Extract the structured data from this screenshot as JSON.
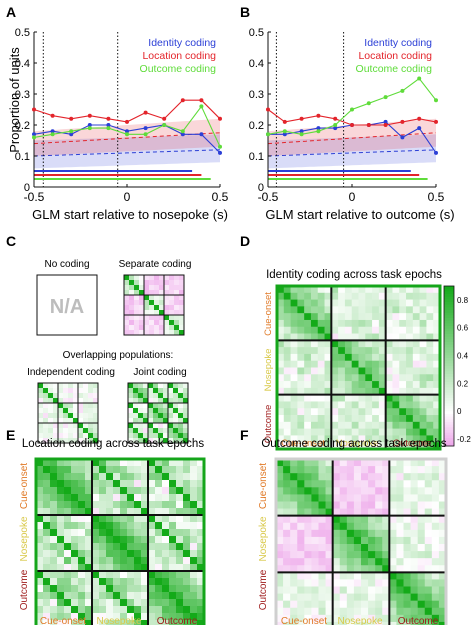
{
  "colors": {
    "identity": "#2b3fd6",
    "location": "#e3242b",
    "outcome": "#5fdc3a",
    "green_dark": "#14a51a",
    "pink": "#f3c6f0",
    "gray": "#cfcfcf"
  },
  "panels": {
    "A": {
      "letter": "A"
    },
    "B": {
      "letter": "B"
    },
    "C": {
      "letter": "C",
      "no_coding": "No coding",
      "na": "N/A",
      "separate": "Separate coding",
      "overlap_title": "Overlapping populations:",
      "independent": "Independent coding",
      "joint": "Joint coding"
    },
    "D": {
      "letter": "D",
      "title": "Identity coding across task epochs"
    },
    "E": {
      "letter": "E",
      "title": "Location coding across task epochs"
    },
    "F": {
      "letter": "F",
      "title": "Outcome coding across task epochs"
    }
  },
  "epochs": {
    "cue": "Cue-onset",
    "nose": "Nosepoke",
    "outcome": "Outcome"
  },
  "colorbar_ticks": [
    "0.8",
    "0.6",
    "0.4",
    "0.2",
    "0",
    "-0.2"
  ],
  "chart_data": [
    {
      "panel": "A",
      "type": "line",
      "xlabel": "GLM start relative to nosepoke (s)",
      "ylabel": "Proportion of units",
      "xlim": [
        -0.5,
        0.5
      ],
      "ylim": [
        0,
        0.5
      ],
      "xticks": [
        "-0.5",
        "0",
        "0.5"
      ],
      "yticks": [
        "0",
        "0.1",
        "0.2",
        "0.3",
        "0.4",
        "0.5"
      ],
      "vlines": [
        -0.45,
        -0.05
      ],
      "legend": [
        "Identity coding",
        "Location coding",
        "Outcome coding"
      ],
      "x": [
        -0.5,
        -0.4,
        -0.3,
        -0.2,
        -0.1,
        0.0,
        0.1,
        0.2,
        0.3,
        0.4,
        0.5
      ],
      "series": [
        {
          "name": "Identity coding",
          "values": [
            0.17,
            0.18,
            0.17,
            0.2,
            0.2,
            0.18,
            0.19,
            0.2,
            0.17,
            0.17,
            0.11
          ]
        },
        {
          "name": "Location coding",
          "values": [
            0.25,
            0.23,
            0.22,
            0.23,
            0.22,
            0.21,
            0.24,
            0.22,
            0.28,
            0.28,
            0.22
          ]
        },
        {
          "name": "Outcome coding",
          "values": [
            0.16,
            0.17,
            0.18,
            0.19,
            0.19,
            0.17,
            0.17,
            0.2,
            0.18,
            0.26,
            0.13
          ]
        }
      ]
    },
    {
      "panel": "B",
      "type": "line",
      "xlabel": "GLM start relative to outcome (s)",
      "xlim": [
        -0.5,
        0.5
      ],
      "ylim": [
        0,
        0.5
      ],
      "xticks": [
        "-0.5",
        "0",
        "0.5"
      ],
      "yticks": [
        "0",
        "0.1",
        "0.2",
        "0.3",
        "0.4",
        "0.5"
      ],
      "vlines": [
        -0.45,
        -0.05
      ],
      "legend": [
        "Identity coding",
        "Location coding",
        "Outcome coding"
      ],
      "x": [
        -0.5,
        -0.4,
        -0.3,
        -0.2,
        -0.1,
        0.0,
        0.1,
        0.2,
        0.3,
        0.4,
        0.5
      ],
      "series": [
        {
          "name": "Identity coding",
          "values": [
            0.17,
            0.17,
            0.18,
            0.19,
            0.19,
            0.2,
            0.2,
            0.21,
            0.16,
            0.19,
            0.11
          ]
        },
        {
          "name": "Location coding",
          "values": [
            0.25,
            0.21,
            0.22,
            0.23,
            0.22,
            0.2,
            0.2,
            0.2,
            0.21,
            0.22,
            0.21
          ]
        },
        {
          "name": "Outcome coding",
          "values": [
            0.17,
            0.18,
            0.17,
            0.18,
            0.2,
            0.25,
            0.27,
            0.29,
            0.31,
            0.35,
            0.28
          ]
        }
      ]
    }
  ]
}
